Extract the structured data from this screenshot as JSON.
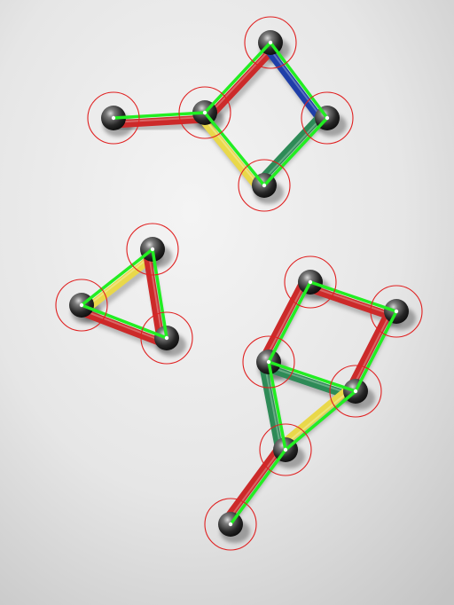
{
  "scene": {
    "description_free": true,
    "colors": {
      "paper_light": "#f2f2f2",
      "paper_dark": "#c9c9c9",
      "rod_red": "#cc2a2a",
      "rod_yellow": "#e9d84a",
      "rod_green": "#2e8b57",
      "rod_blue": "#1f3fa8",
      "overlay_green": "#22ee22",
      "detection_ring": "#e02020",
      "ball_dark": "#1a1a1a",
      "ball_mid": "#6b6b6b"
    },
    "structures": [
      {
        "name": "upper-structure",
        "balls": [
          "u1",
          "u2",
          "u3",
          "u4",
          "u5"
        ],
        "rods": [
          {
            "from": "u1",
            "to": "u2",
            "color": "rod_red"
          },
          {
            "from": "u2",
            "to": "u3",
            "color": "rod_red"
          },
          {
            "from": "u3",
            "to": "u4",
            "color": "rod_blue"
          },
          {
            "from": "u4",
            "to": "u5",
            "color": "rod_green"
          },
          {
            "from": "u2",
            "to": "u5",
            "color": "rod_yellow"
          }
        ]
      },
      {
        "name": "left-triangle",
        "balls": [
          "t1",
          "t2",
          "t3"
        ],
        "rods": [
          {
            "from": "t1",
            "to": "t2",
            "color": "rod_yellow"
          },
          {
            "from": "t2",
            "to": "t3",
            "color": "rod_red"
          },
          {
            "from": "t1",
            "to": "t3",
            "color": "rod_red"
          }
        ]
      },
      {
        "name": "lower-structure",
        "balls": [
          "l1",
          "l2",
          "l3",
          "l4",
          "l5",
          "l6"
        ],
        "rods": [
          {
            "from": "l1",
            "to": "l2",
            "color": "rod_red"
          },
          {
            "from": "l2",
            "to": "l4",
            "color": "rod_red"
          },
          {
            "from": "l1",
            "to": "l3",
            "color": "rod_red"
          },
          {
            "from": "l3",
            "to": "l4",
            "color": "rod_green"
          },
          {
            "from": "l3",
            "to": "l5",
            "color": "rod_green"
          },
          {
            "from": "l4",
            "to": "l5",
            "color": "rod_yellow"
          },
          {
            "from": "l5",
            "to": "l6",
            "color": "rod_red"
          }
        ]
      }
    ]
  }
}
